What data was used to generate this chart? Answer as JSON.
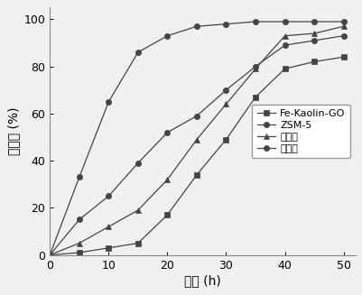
{
  "title": "",
  "xlabel": "时间 (h)",
  "ylabel": "穿透率 (%)",
  "xlim": [
    0,
    52
  ],
  "ylim": [
    0,
    105
  ],
  "xticks": [
    0,
    10,
    20,
    30,
    40,
    50
  ],
  "yticks": [
    0,
    20,
    40,
    60,
    80,
    100
  ],
  "series": [
    {
      "label": "Fe-Kaolin-GO",
      "marker": "s",
      "color": "#444444",
      "x": [
        0,
        5,
        10,
        15,
        20,
        25,
        30,
        35,
        40,
        45,
        50
      ],
      "y": [
        0,
        1,
        3,
        5,
        17,
        34,
        49,
        67,
        79,
        82,
        84
      ]
    },
    {
      "label": "ZSM-5",
      "marker": "o",
      "color": "#444444",
      "x": [
        0,
        5,
        10,
        15,
        20,
        25,
        30,
        35,
        40,
        45,
        50
      ],
      "y": [
        0,
        15,
        25,
        39,
        52,
        59,
        70,
        80,
        89,
        91,
        93
      ]
    },
    {
      "label": "活性炭",
      "marker": "^",
      "color": "#444444",
      "x": [
        0,
        5,
        10,
        15,
        20,
        25,
        30,
        35,
        40,
        45,
        50
      ],
      "y": [
        0,
        5,
        12,
        19,
        32,
        49,
        64,
        79,
        93,
        94,
        97
      ]
    },
    {
      "label": "高岭土",
      "marker": "o",
      "color": "#444444",
      "x": [
        0,
        5,
        10,
        15,
        20,
        25,
        30,
        35,
        40,
        45,
        50
      ],
      "y": [
        0,
        33,
        65,
        86,
        93,
        97,
        98,
        99,
        99,
        99,
        99
      ]
    }
  ],
  "bg_color": "#f0f0f0",
  "plot_bg_color": "#f0f0f0",
  "legend_loc": "center right",
  "fontsize_label": 10,
  "fontsize_tick": 9,
  "fontsize_legend": 8
}
